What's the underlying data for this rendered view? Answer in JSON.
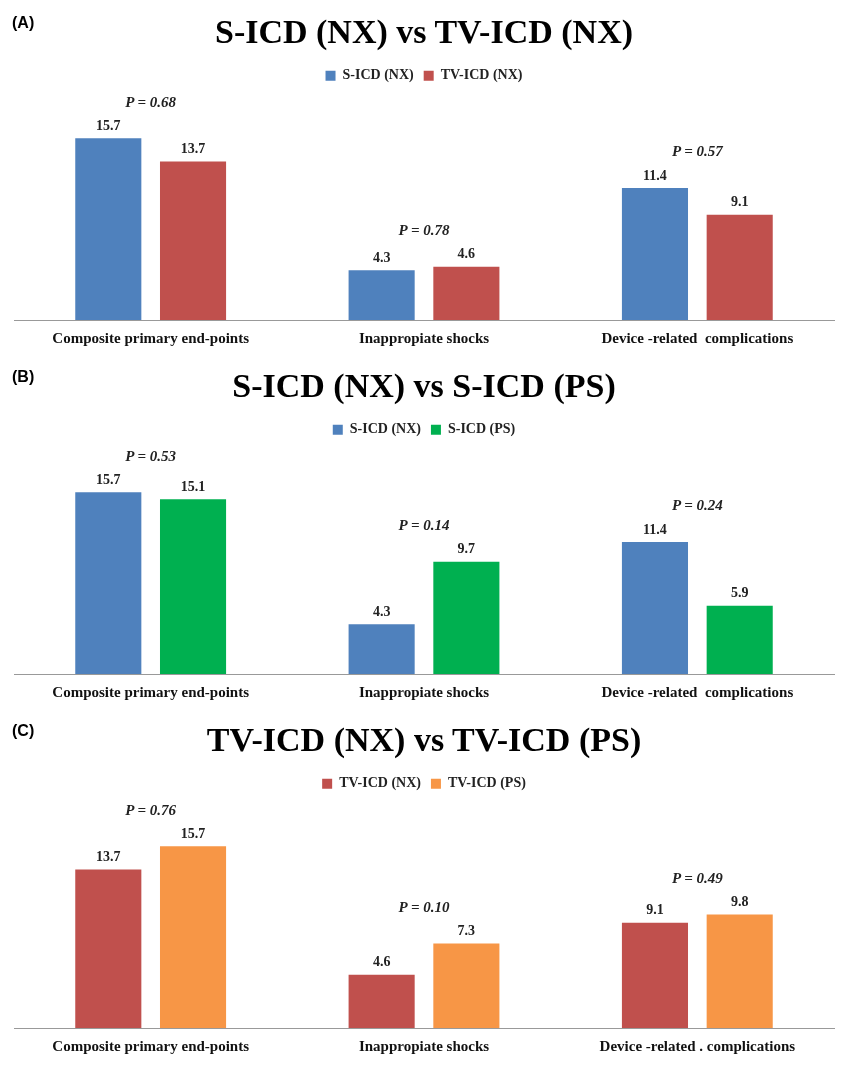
{
  "chart_data": [
    {
      "type": "bar",
      "title": "S-ICD (NX) vs TV-ICD (NX)",
      "categories": [
        "Composite primary end-points",
        "Inappropiate shocks",
        "Device -related  complications"
      ],
      "series": [
        {
          "name": "S-ICD (NX)",
          "color": "#4f81bd",
          "values": [
            15.7,
            4.3,
            11.4
          ]
        },
        {
          "name": "TV-ICD (NX)",
          "color": "#c0504d",
          "values": [
            13.7,
            4.6,
            9.1
          ]
        }
      ],
      "data_labels": true,
      "legend": "top",
      "grid": false,
      "annotations": [
        "(A)",
        "P = 0.68",
        "P = 0.78",
        "P = 0.57"
      ]
    },
    {
      "type": "bar",
      "title": "S-ICD (NX) vs S-ICD (PS)",
      "categories": [
        "Composite primary end-points",
        "Inappropiate shocks",
        "Device -related  complications"
      ],
      "series": [
        {
          "name": "S-ICD (NX)",
          "color": "#4f81bd",
          "values": [
            15.7,
            4.3,
            11.4
          ]
        },
        {
          "name": "S-ICD (PS)",
          "color": "#00b050",
          "values": [
            15.1,
            9.7,
            5.9
          ]
        }
      ],
      "data_labels": true,
      "legend": "top",
      "grid": false,
      "annotations": [
        "(B)",
        "P = 0.53",
        "P = 0.14",
        "P = 0.24"
      ]
    },
    {
      "type": "bar",
      "title": "TV-ICD (NX) vs TV-ICD (PS)",
      "categories": [
        "Composite primary end-points",
        "Inappropiate shocks",
        "Device -related . complications"
      ],
      "series": [
        {
          "name": "TV-ICD (NX)",
          "color": "#c0504d",
          "values": [
            13.7,
            4.6,
            9.1
          ]
        },
        {
          "name": "TV-ICD (PS)",
          "color": "#f79646",
          "values": [
            15.7,
            7.3,
            9.8
          ]
        }
      ],
      "data_labels": true,
      "legend": "top",
      "grid": false,
      "annotations": [
        "(C)",
        "P = 0.76",
        "P = 0.10",
        "P = 0.49"
      ]
    }
  ]
}
